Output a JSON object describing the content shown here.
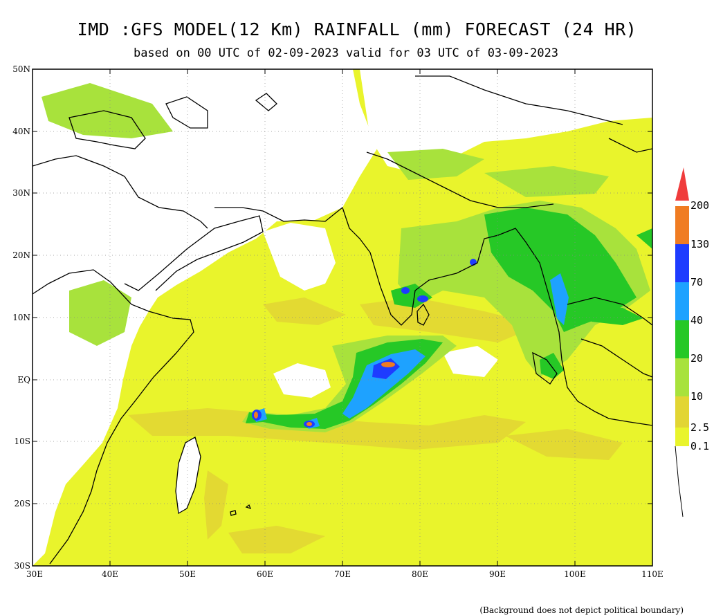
{
  "title": "IMD :GFS MODEL(12 Km) RAINFALL (mm) FORECAST (24 HR)",
  "subtitle": "based on 00 UTC of 02-09-2023 valid for 03 UTC of 03-09-2023",
  "footnote": "(Background does not depict political boundary)",
  "map": {
    "lon_range": [
      30,
      110
    ],
    "lat_range": [
      -30,
      50
    ],
    "lat_ticks": [
      "50N",
      "40N",
      "30N",
      "20N",
      "10N",
      "EQ",
      "10S",
      "20S",
      "30S"
    ],
    "lon_ticks": [
      "30E",
      "40E",
      "50E",
      "60E",
      "70E",
      "80E",
      "90E",
      "100E",
      "110E"
    ],
    "gridlines": "dotted",
    "projection": "lat-lon"
  },
  "colorbar": {
    "levels": [
      "0.1",
      "2.5",
      "10",
      "20",
      "40",
      "70",
      "130",
      "200"
    ],
    "colors": [
      "#e9f42c",
      "#e2d534",
      "#a8e23c",
      "#26c826",
      "#1ea2ff",
      "#1e3cff",
      "#f07c22",
      "#f03c3c"
    ],
    "unit": "mm"
  },
  "colors": {
    "land_background": "#ffffff",
    "coastline": "#000000"
  }
}
